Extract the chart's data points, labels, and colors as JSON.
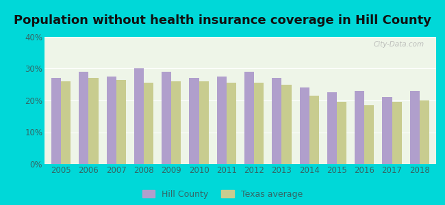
{
  "title": "Population without health insurance coverage in Hill County",
  "years": [
    2005,
    2006,
    2007,
    2008,
    2009,
    2010,
    2011,
    2012,
    2013,
    2014,
    2015,
    2016,
    2017,
    2018
  ],
  "hill_county": [
    27.0,
    29.0,
    27.5,
    30.0,
    29.0,
    27.0,
    27.5,
    29.0,
    27.0,
    24.0,
    22.5,
    23.0,
    21.0,
    23.0
  ],
  "texas_avg": [
    26.0,
    27.0,
    26.5,
    25.5,
    26.0,
    26.0,
    25.5,
    25.5,
    25.0,
    21.5,
    19.5,
    18.5,
    19.5,
    20.0
  ],
  "hill_color": "#b09fcc",
  "texas_color": "#c8cc8f",
  "background_outer": "#00d8d8",
  "background_inner": "#eef5e8",
  "ylim": [
    0,
    40
  ],
  "yticks": [
    0,
    10,
    20,
    30,
    40
  ],
  "ytick_labels": [
    "0%",
    "10%",
    "20%",
    "30%",
    "40%"
  ],
  "bar_width": 0.35,
  "legend_hill": "Hill County",
  "legend_texas": "Texas average",
  "watermark": "City-Data.com",
  "title_fontsize": 13,
  "tick_fontsize": 8.5,
  "legend_fontsize": 9,
  "tick_color": "#336666"
}
